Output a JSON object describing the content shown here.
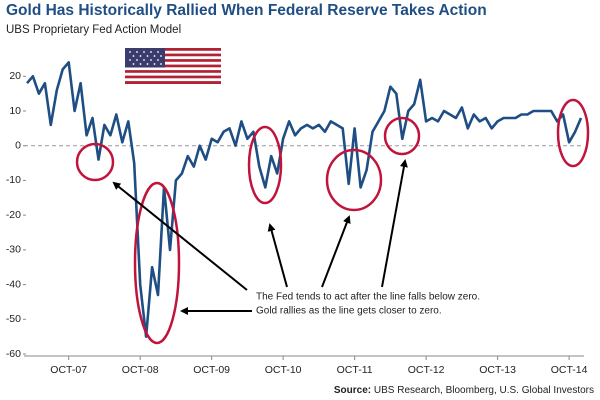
{
  "chart_data": {
    "type": "line",
    "title": "Gold Has Historically Rallied When Federal Reserve Takes Action",
    "subtitle": "UBS Proprietary Fed Action Model",
    "annotation": [
      "The Fed tends to act after the line falls below zero.",
      "Gold rallies as the line gets closer to zero."
    ],
    "source_label": "Source:",
    "source": "UBS Research, Bloomberg, U.S. Global Investors",
    "categories": [
      null,
      null,
      null,
      null,
      null,
      null,
      null,
      "OCT-07",
      null,
      null,
      null,
      null,
      null,
      null,
      null,
      null,
      null,
      null,
      null,
      "OCT-08",
      null,
      null,
      null,
      null,
      null,
      null,
      null,
      null,
      null,
      null,
      null,
      "OCT-09",
      null,
      null,
      null,
      null,
      null,
      null,
      null,
      null,
      null,
      null,
      null,
      "OCT-10",
      null,
      null,
      null,
      null,
      null,
      null,
      null,
      null,
      null,
      null,
      null,
      "OCT-11",
      null,
      null,
      null,
      null,
      null,
      null,
      null,
      null,
      null,
      null,
      null,
      "OCT-12",
      null,
      null,
      null,
      null,
      null,
      null,
      null,
      null,
      null,
      null,
      null,
      "OCT-13",
      null,
      null,
      null,
      null,
      null,
      null,
      null,
      null,
      null,
      null,
      null,
      "OCT-14",
      null,
      null
    ],
    "series": [
      {
        "color": "#1f4e84",
        "values": [
          18,
          20,
          15,
          18,
          6,
          16,
          22,
          24,
          10,
          18,
          3,
          8,
          -4,
          6,
          3,
          9,
          1,
          7,
          -5,
          -40,
          -55,
          -35,
          -43,
          -12,
          -30,
          -10,
          -8,
          -3,
          -6,
          0,
          -4,
          2,
          1,
          4,
          5,
          0,
          7,
          2,
          4,
          -6,
          -12,
          -3,
          -8,
          2,
          7,
          3,
          5,
          6,
          5,
          6,
          4,
          7,
          6,
          5,
          -11,
          5,
          -12,
          -7,
          4,
          7,
          10,
          17,
          15,
          2,
          10,
          12,
          19,
          7,
          8,
          7,
          10,
          9,
          8,
          11,
          5,
          9,
          7,
          8,
          5,
          7,
          8,
          8,
          8,
          9,
          9,
          10,
          10,
          10,
          10,
          7,
          9,
          1,
          4,
          8
        ]
      }
    ],
    "ylim": [
      -60,
      27
    ],
    "yticks": [
      -60,
      -50,
      -40,
      -30,
      -20,
      -10,
      0,
      10,
      20
    ]
  }
}
